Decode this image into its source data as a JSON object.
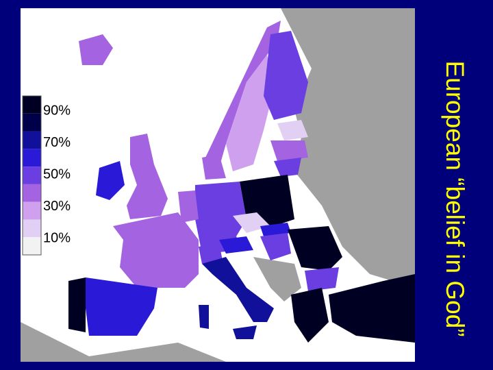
{
  "title": "European “belief in God”",
  "legend": {
    "swatches": [
      "#000022",
      "#00004a",
      "#10109a",
      "#2a1ad8",
      "#6a3ee0",
      "#a463e0",
      "#cfa0ee",
      "#e2d0f4",
      "#f2f2f2"
    ],
    "labels": [
      "90%",
      "70%",
      "50%",
      "30%",
      "10%"
    ]
  }
}
